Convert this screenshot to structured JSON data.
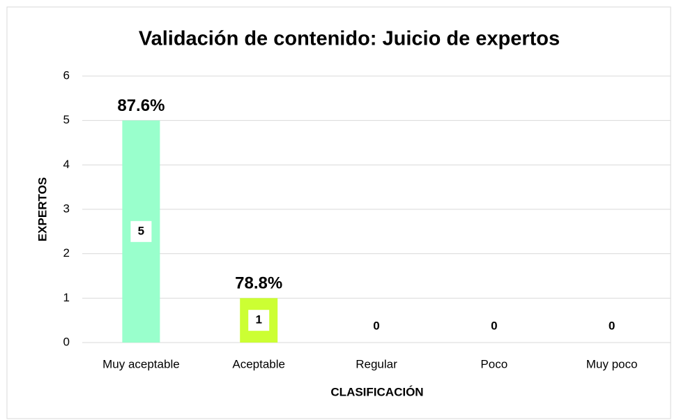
{
  "chart_data": {
    "type": "bar",
    "title": "Validación de contenido: Juicio de expertos",
    "x_label": "CLASIFICACIÓN",
    "y_label": "EXPERTOS",
    "categories": [
      "Muy aceptable",
      "Aceptable",
      "Regular",
      "Poco",
      "Muy poco"
    ],
    "values": [
      5,
      1,
      0,
      0,
      0
    ],
    "colors": [
      "#99ffcc",
      "#ccff33",
      "#ccff33",
      "#ccff33",
      "#ccff33"
    ],
    "annotations": [
      "87.6%",
      "78.8%"
    ],
    "ylim": [
      0,
      6
    ],
    "yticks": [
      0,
      1,
      2,
      3,
      4,
      5,
      6
    ],
    "grid": true
  }
}
